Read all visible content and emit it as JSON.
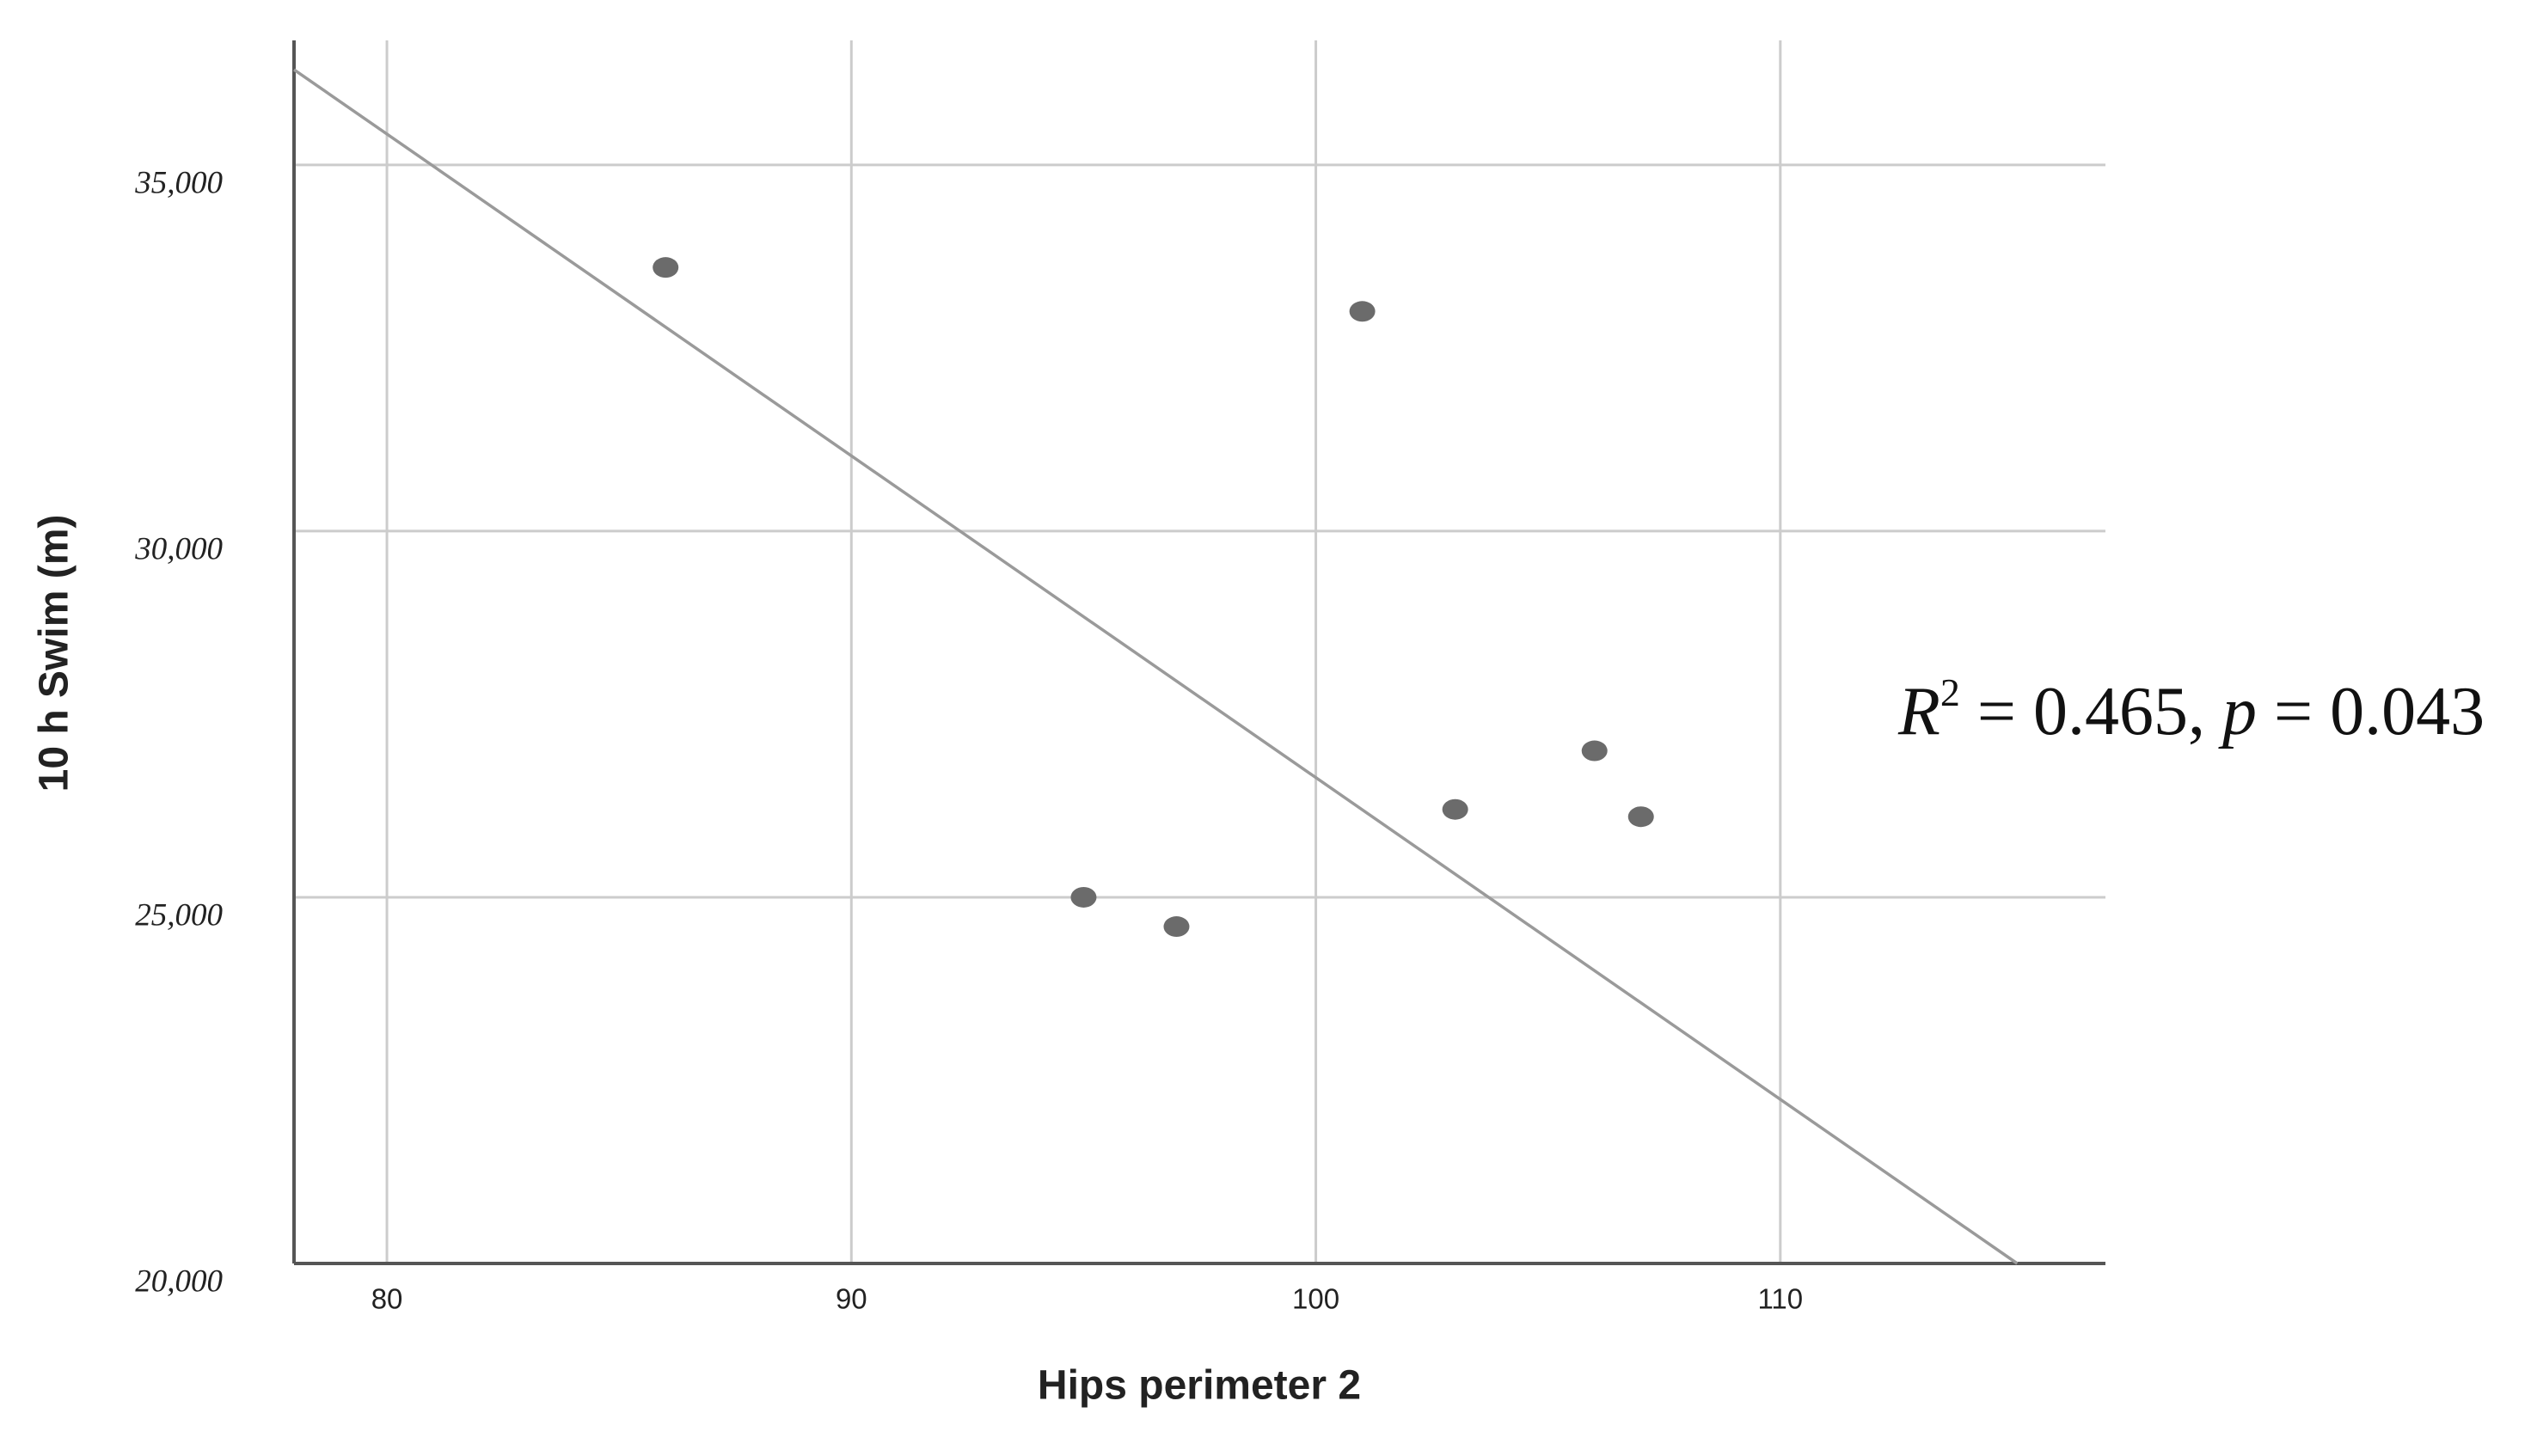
{
  "chart_data": {
    "type": "scatter",
    "x_label": "Hips perimeter 2",
    "y_label": "10 h Swim (m)",
    "x": [
      86,
      101,
      95,
      97,
      103,
      106,
      107
    ],
    "values": [
      33600,
      33000,
      25000,
      24600,
      26200,
      27000,
      26100
    ],
    "color": "#6b6b6b",
    "trendline": {
      "x": [
        78,
        115.1
      ],
      "values": [
        36300,
        20000
      ],
      "color": "#9a9a9a"
    },
    "annotation_parts": [
      "R",
      "2",
      " = 0.465, ",
      "p",
      " = 0.043"
    ],
    "xlim": [
      78,
      117
    ],
    "ylim": [
      20000,
      36700
    ],
    "xticks": [
      80,
      90,
      100,
      110
    ],
    "yticks": [
      {
        "value": 20000,
        "label": "20,000"
      },
      {
        "value": 25000,
        "label": "25,000"
      },
      {
        "value": 30000,
        "label": "30,000"
      },
      {
        "value": 35000,
        "label": "35,000"
      }
    ],
    "grid": true
  }
}
